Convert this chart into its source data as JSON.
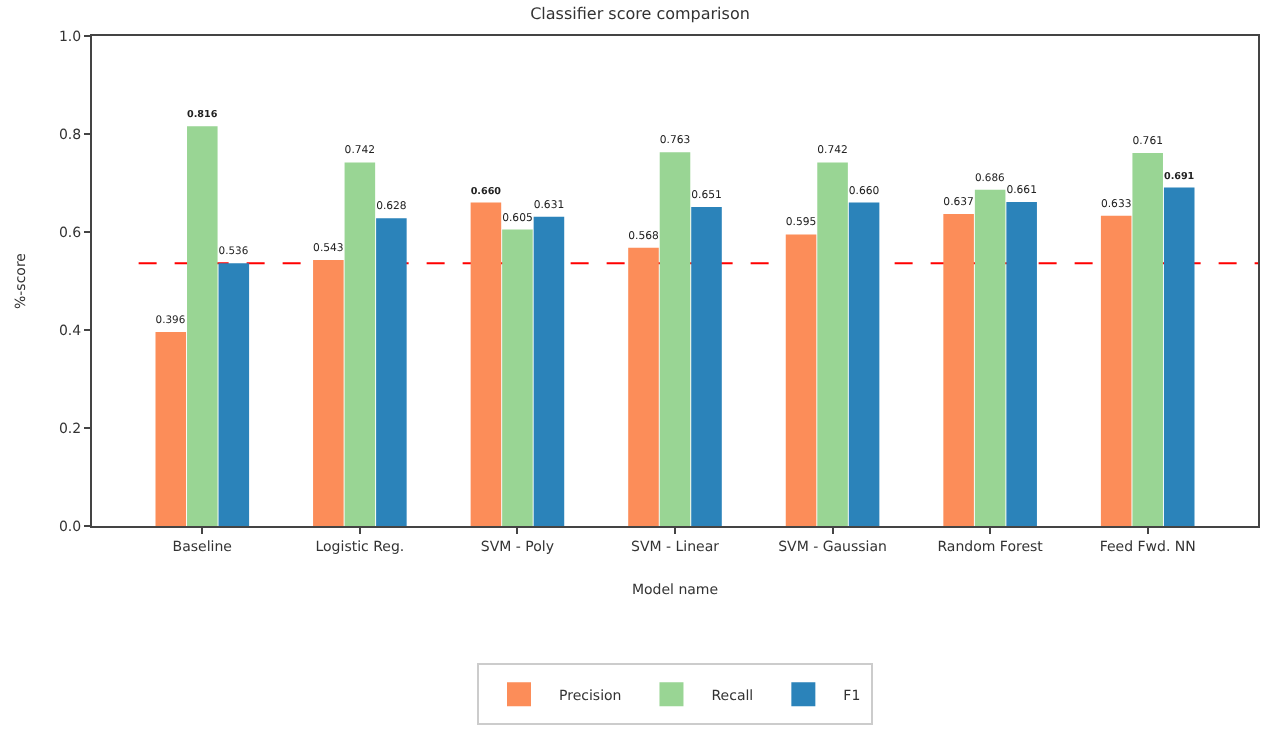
{
  "chart_data": {
    "type": "bar",
    "title": "Classifier score comparison",
    "xlabel": "Model name",
    "ylabel": "%-score",
    "categories": [
      "Baseline",
      "Logistic Reg.",
      "SVM - Poly",
      "SVM - Linear",
      "SVM - Gaussian",
      "Random Forest",
      "Feed Fwd. NN"
    ],
    "series": [
      {
        "name": "Precision",
        "color": "#fc8d59",
        "values": [
          0.396,
          0.543,
          0.66,
          0.568,
          0.595,
          0.637,
          0.633
        ],
        "value_labels": [
          "0.396",
          "0.543",
          "0.660",
          "0.568",
          "0.595",
          "0.637",
          "0.633"
        ]
      },
      {
        "name": "Recall",
        "color": "#99d594",
        "values": [
          0.816,
          0.742,
          0.605,
          0.763,
          0.742,
          0.686,
          0.761
        ],
        "value_labels": [
          "0.816",
          "0.742",
          "0.605",
          "0.763",
          "0.742",
          "0.686",
          "0.761"
        ]
      },
      {
        "name": "F1",
        "color": "#2b83ba",
        "values": [
          0.536,
          0.628,
          0.631,
          0.651,
          0.66,
          0.661,
          0.691
        ],
        "value_labels": [
          "0.536",
          "0.628",
          "0.631",
          "0.651",
          "0.660",
          "0.661",
          "0.691"
        ]
      }
    ],
    "ylim": [
      0,
      1.0
    ],
    "yticks": [
      {
        "value": 0,
        "label": "0.0"
      },
      {
        "value": 0.2,
        "label": "0.2"
      },
      {
        "value": 0.4,
        "label": "0.4"
      },
      {
        "value": 0.6,
        "label": "0.6"
      },
      {
        "value": 0.8,
        "label": "0.8"
      },
      {
        "value": 1.0,
        "label": "1.0"
      }
    ],
    "ref_lines": [
      {
        "axis": "y",
        "value": 0.536,
        "color": "#ff0000",
        "line_style": "dashed"
      }
    ],
    "legend": "bottom"
  }
}
